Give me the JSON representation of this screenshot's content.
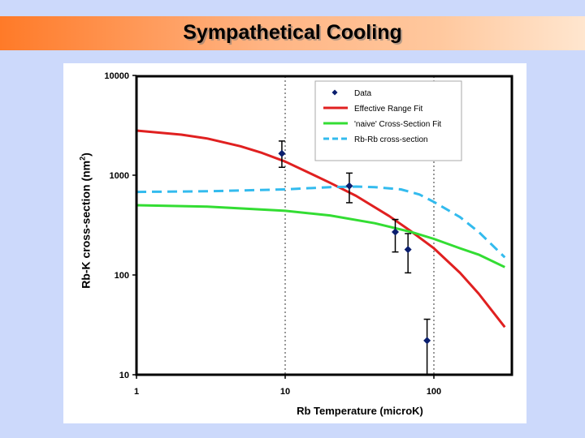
{
  "slide": {
    "title": "Sympathetical Cooling"
  },
  "chart_data": {
    "type": "scatter",
    "title": "Sympathetical Cooling",
    "xlabel": "Rb Temperature (microK)",
    "ylabel_main": "Rb-K cross-section (nm",
    "ylabel_sup": "2",
    "ylabel_tail": ")",
    "x_scale": "log",
    "y_scale": "log",
    "xlim": [
      1,
      300
    ],
    "ylim": [
      10,
      10000
    ],
    "x_ticks": [
      1,
      10,
      100
    ],
    "x_tick_labels": [
      "1",
      "10",
      "100"
    ],
    "y_ticks": [
      10,
      100,
      1000,
      10000
    ],
    "y_tick_labels": [
      "10",
      "100",
      "1000",
      "10000"
    ],
    "grid": "dotted vertical lines at 10 and 100",
    "legend_position": "top-right",
    "series": [
      {
        "name": "Data",
        "kind": "points",
        "color": "#0a1e6e",
        "points": [
          {
            "x": 9.5,
            "y": 1650,
            "err_lo": 1200,
            "err_hi": 2200
          },
          {
            "x": 27,
            "y": 780,
            "err_lo": 530,
            "err_hi": 1050
          },
          {
            "x": 55,
            "y": 270,
            "err_lo": 170,
            "err_hi": 360
          },
          {
            "x": 67,
            "y": 180,
            "err_lo": 105,
            "err_hi": 260
          },
          {
            "x": 90,
            "y": 22,
            "err_lo": 10,
            "err_hi": 36
          }
        ]
      },
      {
        "name": "Effective Range Fit",
        "kind": "line",
        "color": "#e02020",
        "dash": "solid",
        "x": [
          1,
          2,
          3,
          5,
          7,
          10,
          15,
          20,
          30,
          50,
          70,
          100,
          150,
          200,
          300
        ],
        "y": [
          2800,
          2550,
          2330,
          1950,
          1670,
          1370,
          1030,
          840,
          620,
          390,
          275,
          185,
          105,
          65,
          30
        ]
      },
      {
        "name": "'naive' Cross-Section Fit",
        "kind": "line",
        "color": "#33dd33",
        "dash": "solid",
        "x": [
          1,
          3,
          10,
          20,
          40,
          70,
          100,
          150,
          200,
          300
        ],
        "y": [
          500,
          485,
          440,
          395,
          330,
          270,
          230,
          185,
          160,
          120
        ]
      },
      {
        "name": "Rb-Rb cross-section",
        "kind": "line",
        "color": "#33bbee",
        "dash": "dashed",
        "x": [
          1,
          3,
          10,
          20,
          30,
          40,
          60,
          80,
          100,
          150,
          200,
          300
        ],
        "y": [
          680,
          690,
          720,
          760,
          770,
          760,
          720,
          640,
          540,
          380,
          270,
          150
        ]
      }
    ]
  }
}
